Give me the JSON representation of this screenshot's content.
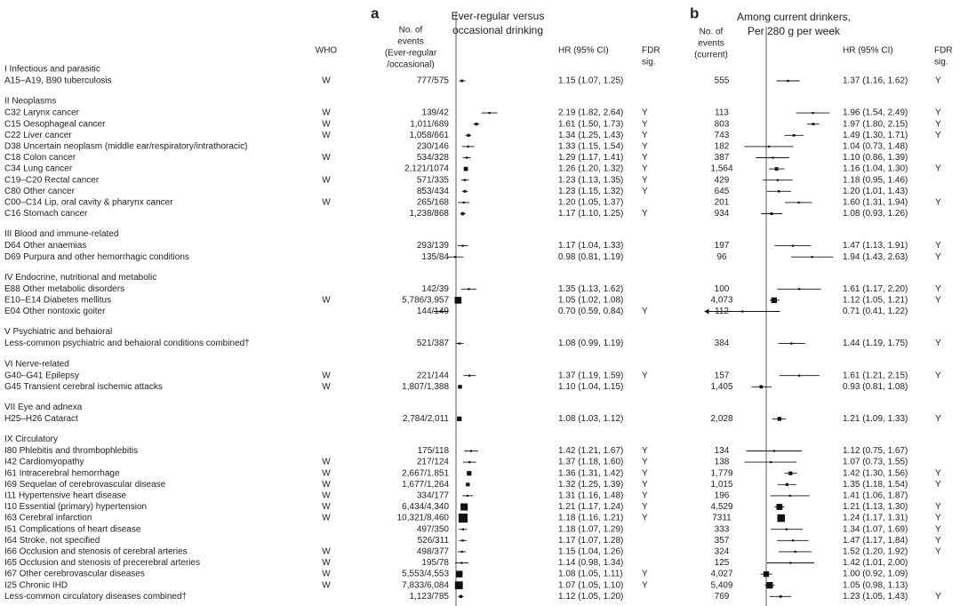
{
  "panel_a": {
    "letter": "a",
    "title": [
      "Ever-regular versus",
      "occasional drinking"
    ]
  },
  "panel_b": {
    "letter": "b",
    "title": [
      "Among current drinkers,",
      "Per 280 g per week"
    ]
  },
  "headers": {
    "who": "WHO",
    "events_a": [
      "No. of",
      "events",
      "(Ever-regular",
      "/occasional)"
    ],
    "hr_a": "HR (95% CI)",
    "fdr_a": [
      "FDR",
      "sig."
    ],
    "events_b": [
      "No. of",
      "events",
      "(current)"
    ],
    "hr_b": "HR (95% CI)",
    "fdr_b": [
      "FDR",
      "sig."
    ]
  },
  "groups": [
    {
      "name": "I Infectious and parasitic",
      "rows": [
        [
          "A15–A19, B90 tuberculosis",
          "W",
          "777/575",
          "1.15 (1.07, 1.25)",
          null,
          "555",
          "1.37 (1.16, 1.62)",
          "Y"
        ]
      ]
    },
    {
      "name": "II Neoplasms",
      "rows": [
        [
          "C32 Larynx cancer",
          "W",
          "139/42",
          "2.19 (1.82, 2.64)",
          "Y",
          "113",
          "1.96 (1.54, 2.49)",
          "Y"
        ],
        [
          "C15 Oesophageal cancer",
          "W",
          "1,011/689",
          "1.61 (1.50, 1.73)",
          "Y",
          "803",
          "1.97 (1.80, 2.15)",
          "Y"
        ],
        [
          "C22 Liver cancer",
          "W",
          "1,058/661",
          "1.34 (1.25, 1.43)",
          "Y",
          "743",
          "1.49 (1.30, 1.71)",
          "Y"
        ],
        [
          "D38 Uncertain neoplasm (middle ear/respiratory/intrathoracic)",
          null,
          "230/146",
          "1.33 (1.15, 1.54)",
          "Y",
          "182",
          "1.04 (0.73, 1.48)",
          null
        ],
        [
          "C18 Colon cancer",
          "W",
          "534/328",
          "1.29 (1.17, 1.41)",
          "Y",
          "387",
          "1.10 (0.86, 1.39)",
          null
        ],
        [
          "C34 Lung cancer",
          null,
          "2,121/1074",
          "1.26 (1.20, 1.32)",
          "Y",
          "1,564",
          "1.16 (1.04, 1.30)",
          "Y"
        ],
        [
          "C19–C20 Rectal cancer",
          "W",
          "571/335",
          "1.23 (1.13, 1.35)",
          "Y",
          "429",
          "1.18 (0.95, 1.46)",
          null
        ],
        [
          "C80 Other cancer",
          null,
          "853/434",
          "1.23 (1.15, 1.32)",
          "Y",
          "645",
          "1.20 (1.01, 1.43)",
          null
        ],
        [
          "C00–C14 Lip, oral cavity & pharynx cancer",
          "W",
          "265/168",
          "1.20 (1.05, 1.37)",
          null,
          "201",
          "1.60 (1.31, 1.94)",
          "Y"
        ],
        [
          "C16 Stomach cancer",
          null,
          "1,238/868",
          "1.17 (1.10, 1.25)",
          "Y",
          "934",
          "1.08 (0.93, 1.26)",
          null
        ]
      ]
    },
    {
      "name": "III Blood and immune-related",
      "rows": [
        [
          "D64 Other anaemias",
          null,
          "293/139",
          "1.17 (1.04, 1.33)",
          null,
          "197",
          "1.47 (1.13, 1.91)",
          "Y"
        ],
        [
          "D69 Purpura and other hemorrhagic conditions",
          null,
          "135/84",
          "0.98 (0.81, 1.19)",
          null,
          "96",
          "1.94 (1.43, 2.63)",
          "Y"
        ]
      ]
    },
    {
      "name": "IV Endocrine, nutritional and metabolic",
      "rows": [
        [
          "E88 Other metabolic disorders",
          null,
          "142/39",
          "1.35 (1.13, 1.62)",
          null,
          "100",
          "1.61 (1.17, 2.20)",
          "Y"
        ],
        [
          "E10–E14 Diabetes mellitus",
          "W",
          "5,786/3,957",
          "1.05 (1.02, 1.08)",
          null,
          "4,073",
          "1.12 (1.05, 1.21)",
          "Y"
        ],
        [
          "E04 Other nontoxic goiter",
          null,
          "144/149",
          "0.70 (0.59, 0.84)",
          "Y",
          "112",
          "0.71 (0.41, 1.22)",
          null
        ]
      ]
    },
    {
      "name": "V Psychiatric and behaioral",
      "rows": [
        [
          "Less-common psychiatric and behaioral conditions combined†",
          null,
          "521/387",
          "1.08 (0.99, 1.19)",
          null,
          "384",
          "1.44 (1.19, 1.75)",
          "Y"
        ]
      ]
    },
    {
      "name": "VI Nerve-related",
      "rows": [
        [
          "G40–G41 Epilepsy",
          "W",
          "221/144",
          "1.37 (1.19, 1.59)",
          "Y",
          "157",
          "1.61 (1.21, 2.15)",
          "Y"
        ],
        [
          "G45 Transient cerebral ischemic attacks",
          "W",
          "1,807/1,388",
          "1.10 (1.04, 1.15)",
          null,
          "1,405",
          "0.93 (0.81, 1.08)",
          null
        ]
      ]
    },
    {
      "name": "VII Eye and adnexa",
      "rows": [
        [
          "H25–H26 Cataract",
          null,
          "2,784/2,011",
          "1.08 (1.03, 1.12)",
          null,
          "2,028",
          "1.21 (1.09, 1.33)",
          "Y"
        ]
      ]
    },
    {
      "name": "IX Circulatory",
      "rows": [
        [
          "I80 Phlebitis and thrombophlebitis",
          null,
          "175/118",
          "1.42 (1.21, 1.67)",
          "Y",
          "134",
          "1.12 (0.75, 1.67)",
          null
        ],
        [
          "I42 Cardiomyopathy",
          "W",
          "217/124",
          "1.37 (1.18, 1.60)",
          "Y",
          "138",
          "1.07 (0.73, 1.55)",
          null
        ],
        [
          "I61 Intracerebral hemorrhage",
          "W",
          "2,667/1,851",
          "1.36 (1.31, 1.42)",
          "Y",
          "1,779",
          "1.42 (1.30, 1.56)",
          "Y"
        ],
        [
          "I69 Sequelae of cerebrovascular disease",
          "W",
          "1,677/1,264",
          "1.32 (1.25, 1.39)",
          "Y",
          "1,015",
          "1.35 (1.18, 1.54)",
          "Y"
        ],
        [
          "I11 Hypertensive heart disease",
          "W",
          "334/177",
          "1.31 (1.16, 1.48)",
          "Y",
          "196",
          "1.41 (1.06, 1.87)",
          null
        ],
        [
          "I10 Essential (primary) hypertension",
          "W",
          "6,434/4,340",
          "1.21 (1.17, 1.24)",
          "Y",
          "4,529",
          "1.21 (1.13, 1.30)",
          "Y"
        ],
        [
          "I63 Cerebral infarction",
          "W",
          "10,321/8,460",
          "1.18 (1.16, 1.21)",
          "Y",
          "7311",
          "1.24 (1.17, 1.31)",
          "Y"
        ],
        [
          "I51 Complications of heart disease",
          null,
          "497/350",
          "1.18 (1.07, 1.29)",
          null,
          "333",
          "1.34 (1.07, 1.69)",
          "Y"
        ],
        [
          "I64 Stroke, not specified",
          null,
          "526/311",
          "1.17 (1.07, 1.28)",
          null,
          "357",
          "1.47 (1.17, 1.84)",
          "Y"
        ],
        [
          "I66 Occlusion and stenosis of cerebral arteries",
          "W",
          "498/377",
          "1.15 (1.04, 1.26)",
          null,
          "324",
          "1.52 (1.20, 1.92)",
          "Y"
        ],
        [
          "I65 Occlusion and stenosis of precerebral arteries",
          "W",
          "195/78",
          "1.14 (0.98, 1.34)",
          null,
          "125",
          "1.42 (1.01, 2.00)",
          null
        ],
        [
          "I67 Other cerebrovascular diseases",
          "W",
          "5,553/4,553",
          "1.08 (1.05, 1.11)",
          "Y",
          "4,027",
          "1.00 (0.92, 1.09)",
          null
        ],
        [
          "I25 Chronic IHD",
          "W",
          "7,833/6,084",
          "1.07 (1.05, 1.10)",
          "Y",
          "5,409",
          "1.05 (0.98, 1.13)",
          null
        ],
        [
          "Less-common circulatory diseases combined†",
          null,
          "1,123/785",
          "1.12 (1.05, 1.20)",
          null,
          "769",
          "1.23 (1.05, 1.43)",
          "Y"
        ]
      ]
    }
  ]
}
